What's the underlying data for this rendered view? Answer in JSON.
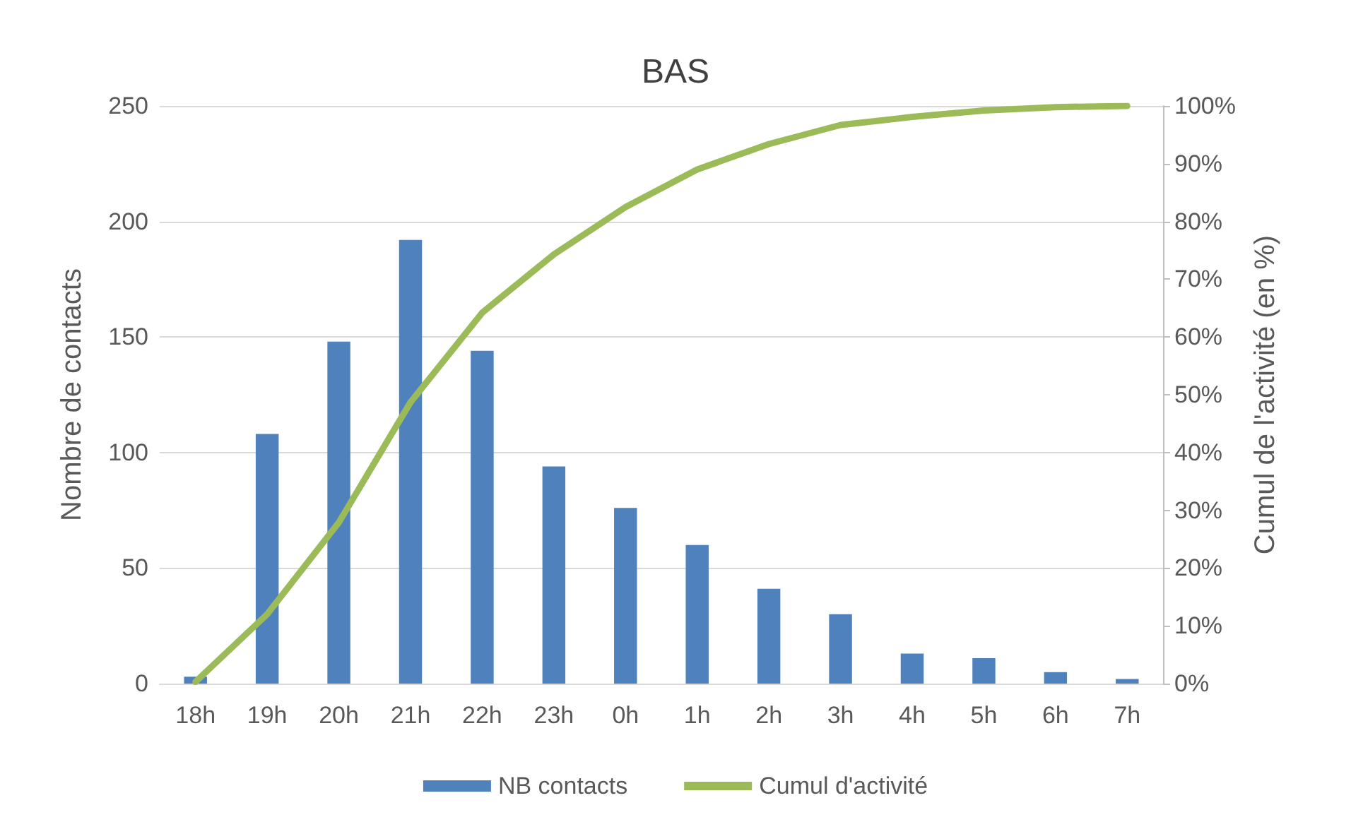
{
  "chart_data": {
    "type": "bar",
    "title": "BAS",
    "ylabel": "Nombre de contacts",
    "y2label": "Cumul de l'activité (en %)",
    "categories": [
      "18h",
      "19h",
      "20h",
      "21h",
      "22h",
      "23h",
      "0h",
      "1h",
      "2h",
      "3h",
      "4h",
      "5h",
      "6h",
      "7h"
    ],
    "series": [
      {
        "name": "NB contacts",
        "color": "#4f81bd",
        "values": [
          3,
          108,
          148,
          192,
          144,
          94,
          76,
          60,
          41,
          30,
          13,
          11,
          5,
          2
        ]
      },
      {
        "name": "Cumul d'activité",
        "type": "line",
        "axis": "y2",
        "color": "#9bbb59",
        "values": [
          0.3,
          12,
          27.9,
          48.7,
          64.2,
          74.3,
          82.5,
          89,
          93.4,
          96.7,
          98.1,
          99.2,
          99.8,
          100
        ]
      }
    ],
    "ylim": [
      0,
      250
    ],
    "yticks": [
      0,
      50,
      100,
      150,
      200,
      250
    ],
    "y2lim": [
      0,
      100
    ],
    "y2ticks": [
      {
        "value": 0,
        "label": "0%"
      },
      {
        "value": 10,
        "label": "10%"
      },
      {
        "value": 20,
        "label": "20%"
      },
      {
        "value": 30,
        "label": "30%"
      },
      {
        "value": 40,
        "label": "40%"
      },
      {
        "value": 50,
        "label": "50%"
      },
      {
        "value": 60,
        "label": "60%"
      },
      {
        "value": 70,
        "label": "70%"
      },
      {
        "value": 80,
        "label": "80%"
      },
      {
        "value": 90,
        "label": "90%"
      },
      {
        "value": 100,
        "label": "100%"
      }
    ],
    "grid": "y",
    "legend": "bottom",
    "marker": "none",
    "line_style": "solid"
  }
}
